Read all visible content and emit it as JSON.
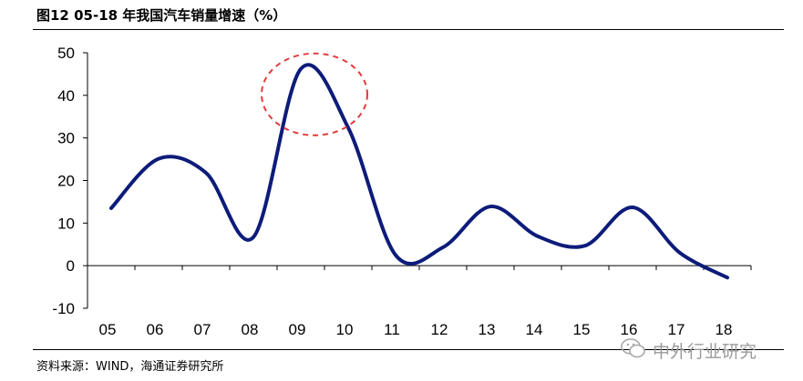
{
  "figure": {
    "title": "图12 05-18 年我国汽车销量增速（%）",
    "source": "资料来源：WIND，海通证券研究所",
    "watermark": "中外行业研究"
  },
  "chart_data": {
    "type": "line",
    "title": "图12 05-18 年我国汽车销量增速（%）",
    "xlabel": "",
    "ylabel": "",
    "categories": [
      "05",
      "06",
      "07",
      "08",
      "09",
      "10",
      "11",
      "12",
      "13",
      "14",
      "15",
      "16",
      "17",
      "18"
    ],
    "series": [
      {
        "values": [
          13.5,
          25.1,
          21.8,
          6.7,
          46.2,
          32.4,
          2.5,
          4.3,
          13.9,
          6.9,
          4.7,
          13.7,
          3.0,
          -2.8
        ]
      }
    ],
    "ylim": [
      -10,
      50
    ],
    "yticks": [
      -10,
      0,
      10,
      20,
      30,
      40,
      50
    ],
    "grid": false,
    "smooth": true,
    "line_color": "#0d1c7a",
    "highlight": {
      "shape": "dashed-ellipse",
      "around_category": "09",
      "color": "#e23a3a"
    }
  }
}
